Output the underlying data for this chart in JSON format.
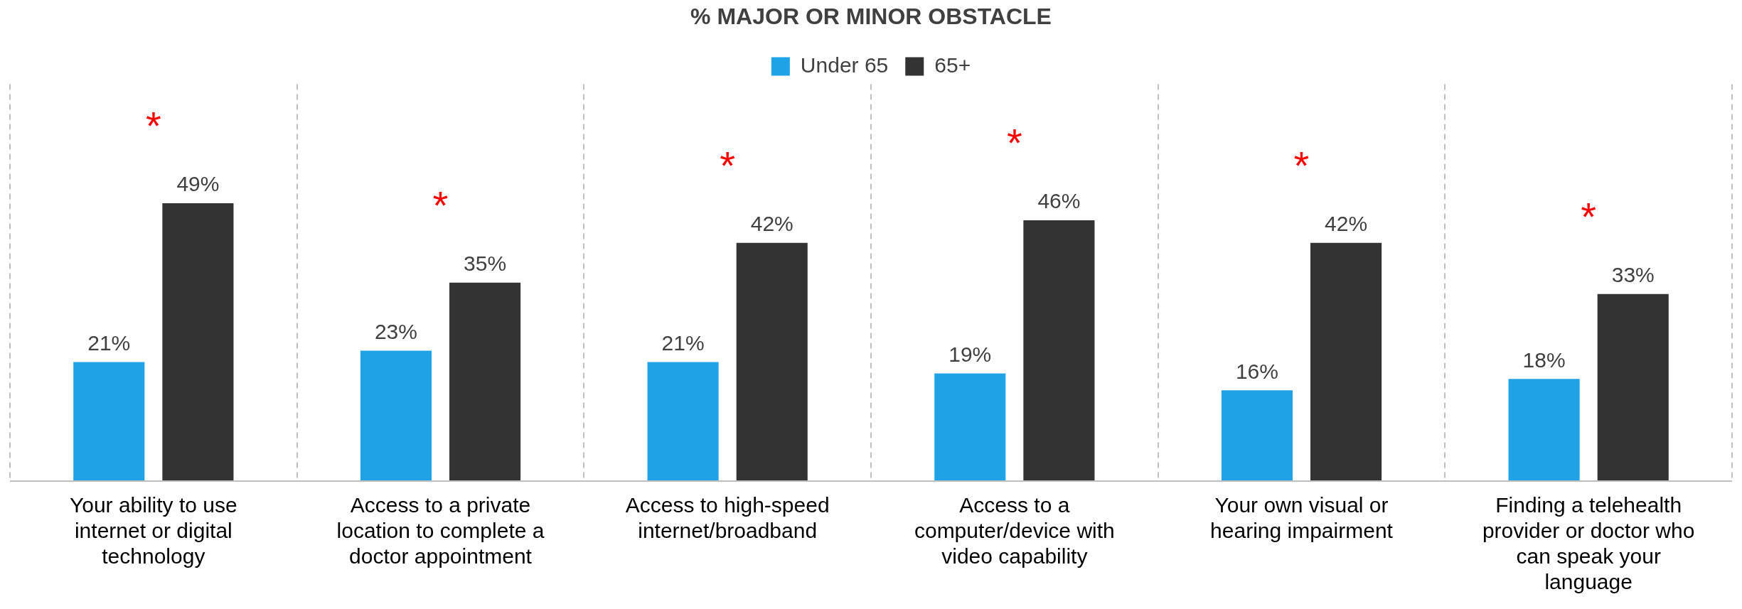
{
  "chart_data": {
    "type": "bar",
    "title": "% MAJOR OR MINOR OBSTACLE",
    "categories": [
      "Your ability to use internet or digital technology",
      "Access to a private location to complete a doctor appointment",
      "Access to high-speed internet/broadband",
      "Access to a computer/device with video capability",
      "Your own visual or hearing impairment",
      "Finding a telehealth provider or doctor who can speak your language"
    ],
    "series": [
      {
        "name": "Under 65",
        "color": "#1fa3e6",
        "values": [
          21,
          23,
          21,
          19,
          16,
          18
        ],
        "value_labels": [
          "21%",
          "23%",
          "21%",
          "19%",
          "16%",
          "18%"
        ]
      },
      {
        "name": "65+",
        "color": "#333333",
        "values": [
          49,
          35,
          42,
          46,
          42,
          33
        ],
        "value_labels": [
          "49%",
          "35%",
          "42%",
          "46%",
          "42%",
          "33%"
        ]
      }
    ],
    "ylim": [
      0,
      70
    ],
    "grid": "x",
    "legend": "top",
    "annotations": [
      "*",
      "*",
      "*",
      "*",
      "*",
      "*"
    ]
  }
}
